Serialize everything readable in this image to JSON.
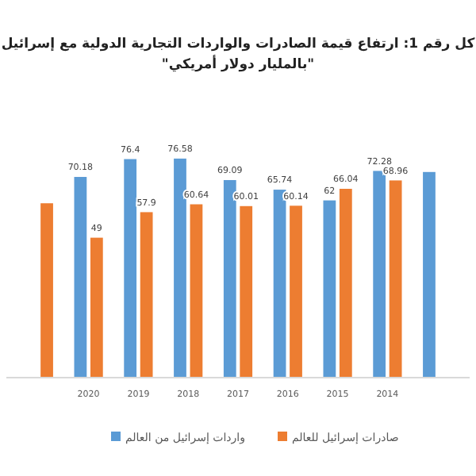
{
  "chart_data": {
    "type": "bar",
    "title": "كل رقم 1: ارتفاع قيمة الصادرات والواردات التجارية الدولية مع إسرائيل",
    "subtitle": "\"بالمليار دولار أمريكي\"",
    "categories": [
      null,
      "2020",
      "2019",
      "2018",
      "2017",
      "2016",
      "2015",
      "2014",
      null
    ],
    "series": [
      {
        "name": "واردات إسرائيل من العالم",
        "color": "#5b9bd5",
        "values": [
          null,
          70.18,
          76.4,
          76.58,
          69.09,
          65.74,
          62,
          72.28,
          71.9
        ],
        "value_labels": [
          null,
          "70.18",
          "76.4",
          "76.58",
          "69.09",
          "65.74",
          "62",
          "72.28",
          null
        ]
      },
      {
        "name": "صادرات إسرائيل للعالم",
        "color": "#ed7d31",
        "values": [
          61,
          49,
          57.9,
          60.64,
          60.01,
          60.14,
          66.04,
          68.96,
          null
        ],
        "value_labels": [
          null,
          "49",
          "57.9",
          "60.64",
          "60.01",
          "60.14",
          "66.04",
          "68.96",
          null
        ]
      }
    ],
    "legend": "bottom",
    "relative": false
  }
}
